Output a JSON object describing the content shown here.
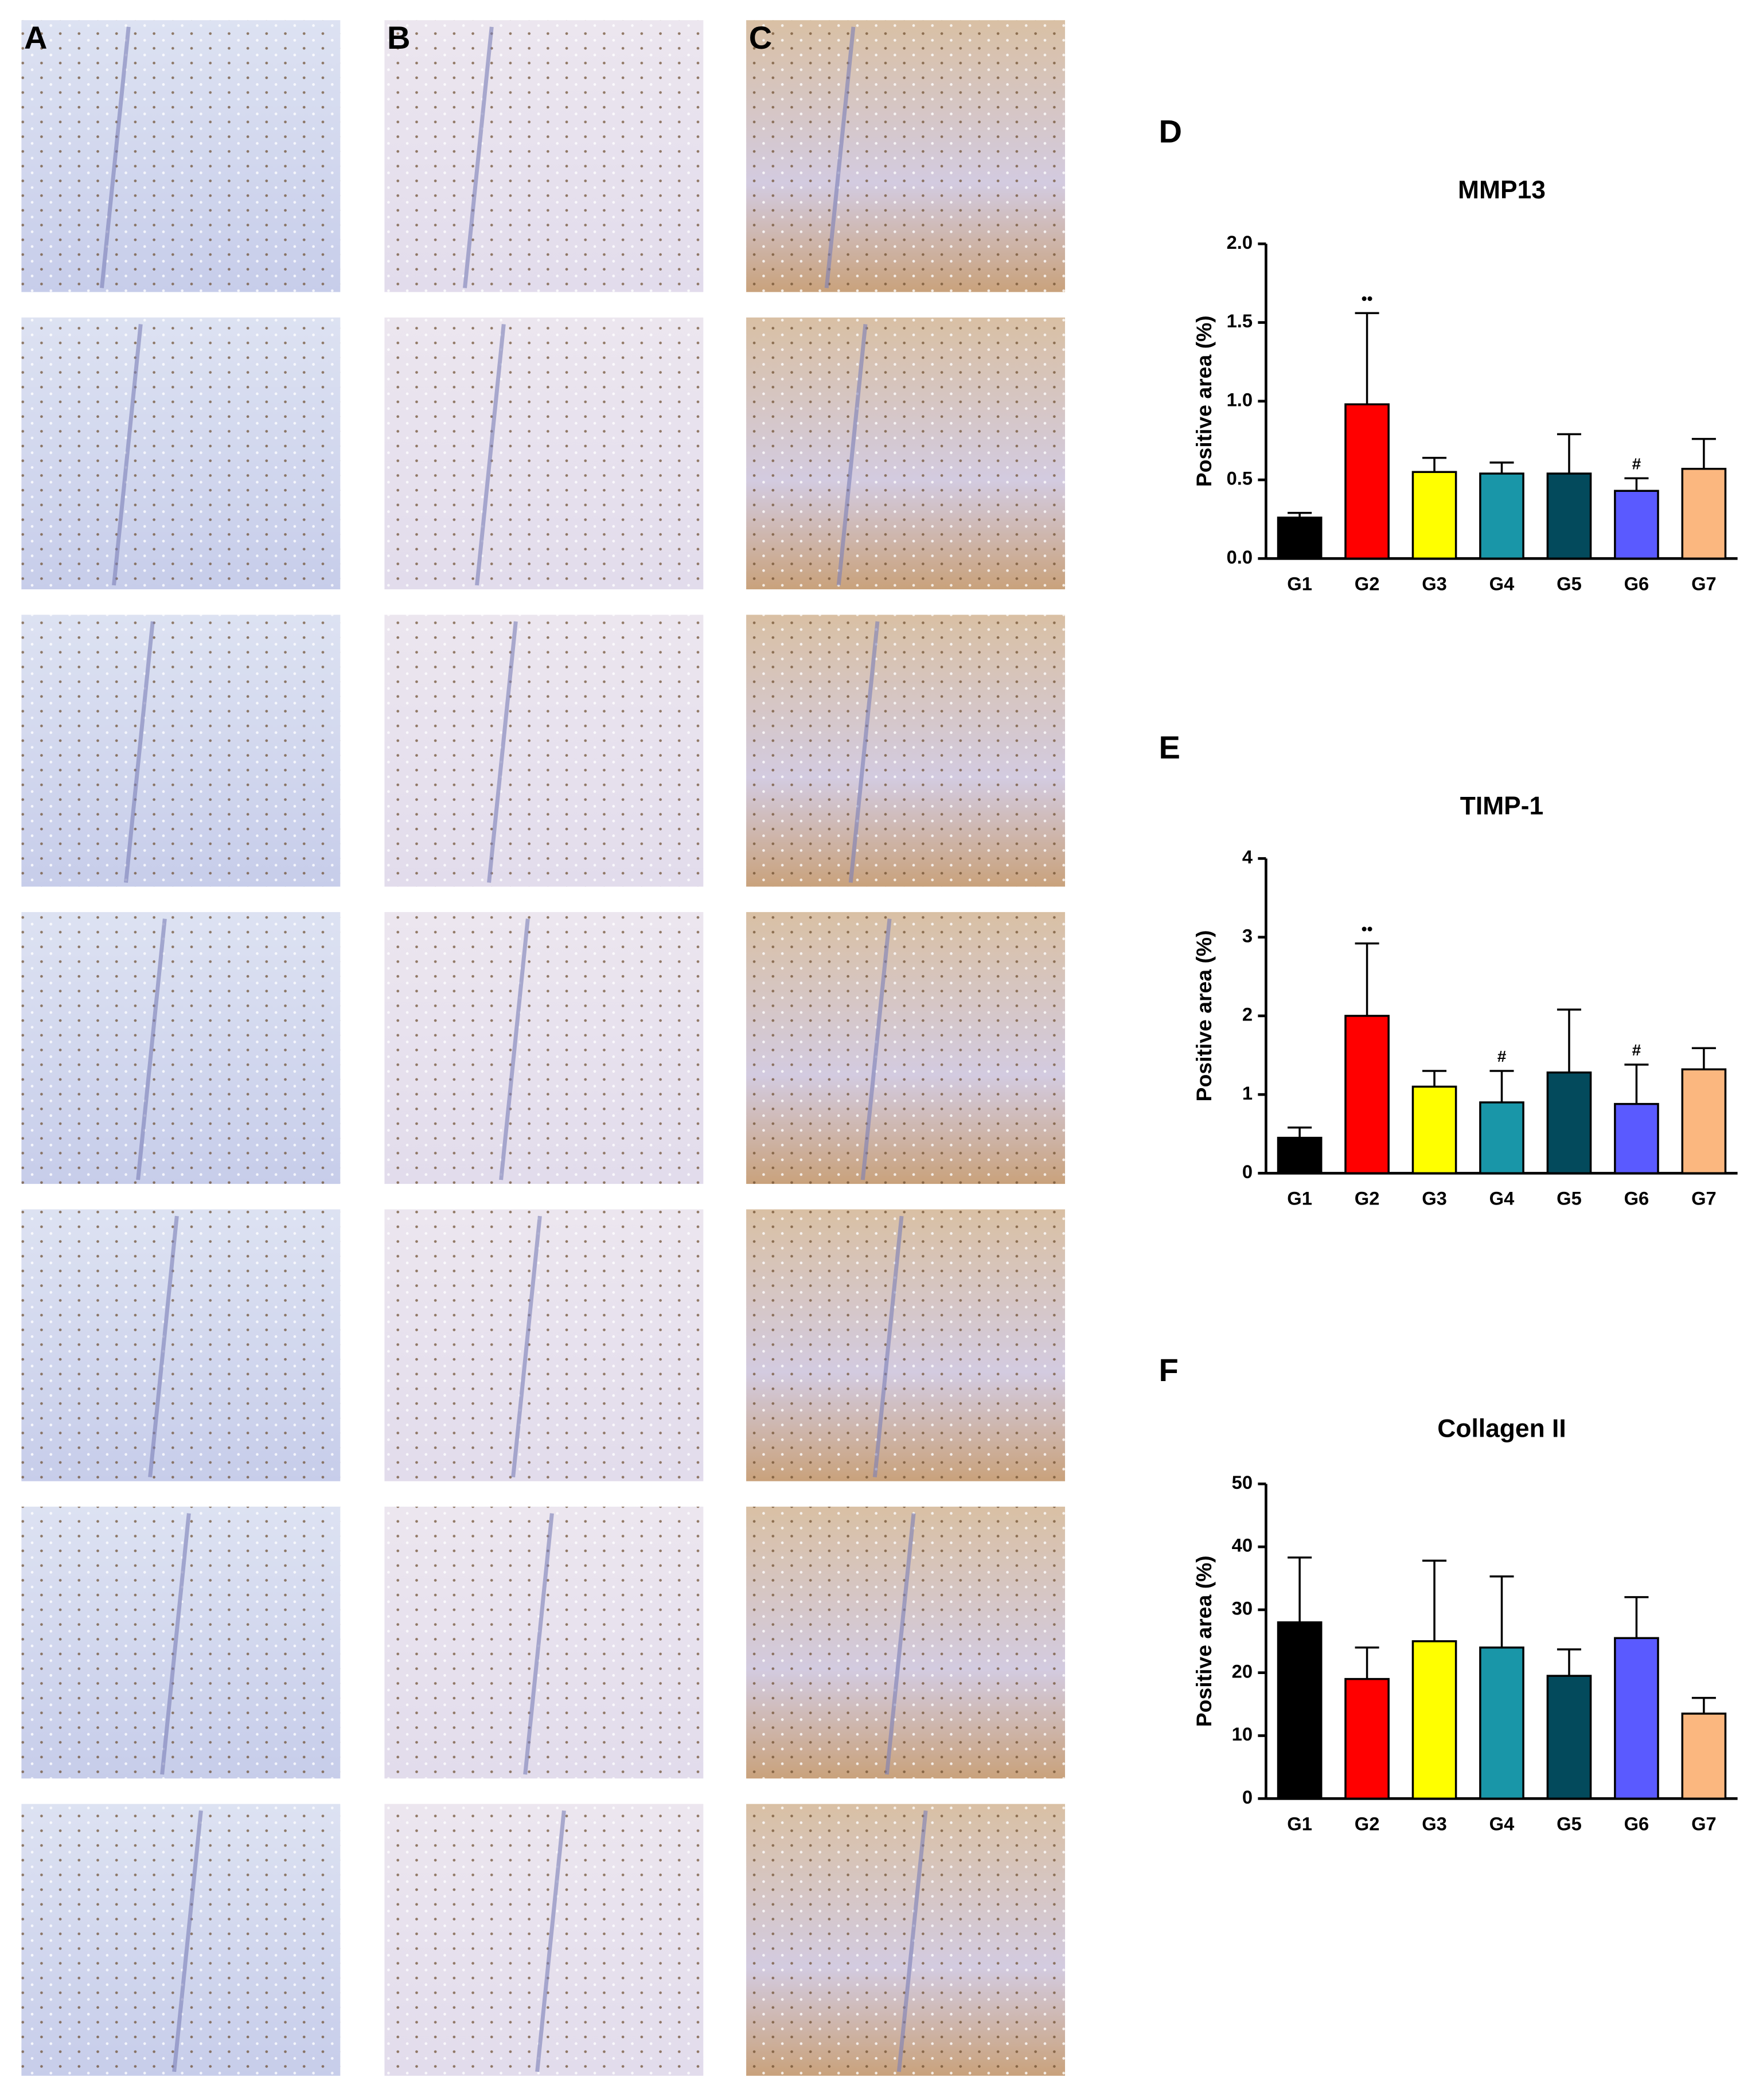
{
  "panels": [
    "A",
    "B",
    "C"
  ],
  "chart_data": [
    {
      "type": "bar",
      "panel_label": "D",
      "title": "MMP13",
      "y_label": "Positive area (%)",
      "categories": [
        "G1",
        "G2",
        "G3",
        "G4",
        "G5",
        "G6",
        "G7"
      ],
      "values": [
        0.26,
        0.98,
        0.55,
        0.54,
        0.54,
        0.43,
        0.57
      ],
      "errors": [
        0.03,
        0.58,
        0.09,
        0.07,
        0.25,
        0.08,
        0.19
      ],
      "colors": [
        "#000000",
        "#ff0000",
        "#ffff00",
        "#1996a8",
        "#034a5c",
        "#5a5aff",
        "#fbb77f"
      ],
      "annotations": [
        null,
        "••",
        null,
        null,
        null,
        "#",
        null
      ],
      "ylim": [
        0,
        2
      ],
      "yticks": [
        {
          "value": 0,
          "label": "0.0"
        },
        {
          "value": 0.5,
          "label": "0.5"
        },
        {
          "value": 1,
          "label": "1.0"
        },
        {
          "value": 1.5,
          "label": "1.5"
        },
        {
          "value": 2,
          "label": "2.0"
        }
      ]
    },
    {
      "type": "bar",
      "panel_label": "E",
      "title": "TIMP-1",
      "y_label": "Positive area (%)",
      "categories": [
        "G1",
        "G2",
        "G3",
        "G4",
        "G5",
        "G6",
        "G7"
      ],
      "values": [
        0.45,
        2.0,
        1.1,
        0.9,
        1.28,
        0.88,
        1.32
      ],
      "errors": [
        0.13,
        0.92,
        0.2,
        0.4,
        0.8,
        0.5,
        0.27
      ],
      "colors": [
        "#000000",
        "#ff0000",
        "#ffff00",
        "#1996a8",
        "#034a5c",
        "#5a5aff",
        "#fbb77f"
      ],
      "annotations": [
        null,
        "••",
        null,
        "#",
        null,
        "#",
        null
      ],
      "ylim": [
        0,
        4
      ],
      "yticks": [
        0,
        1,
        2,
        3,
        4
      ]
    },
    {
      "type": "bar",
      "panel_label": "F",
      "title": "Collagen II",
      "y_label": "Positive area (%)",
      "categories": [
        "G1",
        "G2",
        "G3",
        "G4",
        "G5",
        "G6",
        "G7"
      ],
      "values": [
        28,
        19,
        25,
        24,
        19.5,
        25.5,
        13.5
      ],
      "errors": [
        10.3,
        5,
        12.8,
        11.3,
        4.2,
        6.5,
        2.5
      ],
      "colors": [
        "#000000",
        "#ff0000",
        "#ffff00",
        "#1996a8",
        "#034a5c",
        "#5a5aff",
        "#fbb77f"
      ],
      "annotations": [
        null,
        null,
        null,
        null,
        null,
        null,
        null
      ],
      "ylim": [
        0,
        50
      ],
      "yticks": [
        0,
        10,
        20,
        30,
        40,
        50
      ]
    }
  ]
}
